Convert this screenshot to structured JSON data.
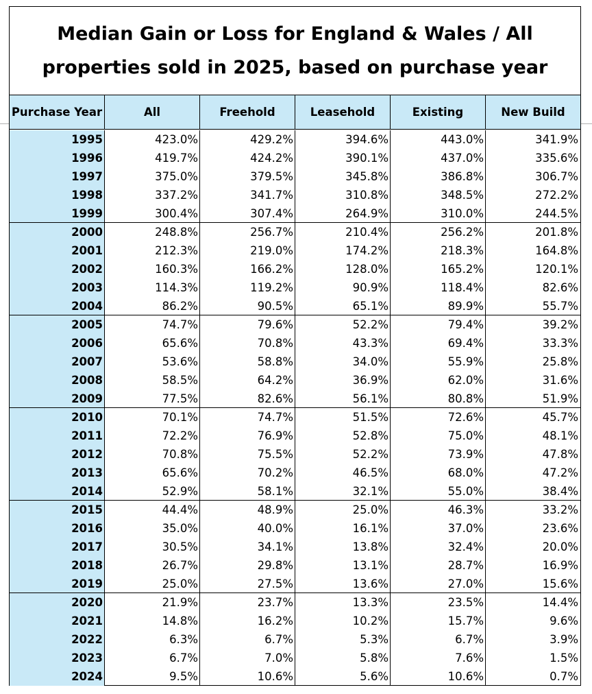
{
  "chart_data": {
    "type": "table",
    "title": "Median Gain or Loss for England & Wales / All properties sold in 2025, based on purchase year",
    "columns": [
      "Purchase Year",
      "All",
      "Freehold",
      "Leasehold",
      "Existing",
      "New Build"
    ],
    "rows": [
      [
        "1995",
        "423.0%",
        "429.2%",
        "394.6%",
        "443.0%",
        "341.9%"
      ],
      [
        "1996",
        "419.7%",
        "424.2%",
        "390.1%",
        "437.0%",
        "335.6%"
      ],
      [
        "1997",
        "375.0%",
        "379.5%",
        "345.8%",
        "386.8%",
        "306.7%"
      ],
      [
        "1998",
        "337.2%",
        "341.7%",
        "310.8%",
        "348.5%",
        "272.2%"
      ],
      [
        "1999",
        "300.4%",
        "307.4%",
        "264.9%",
        "310.0%",
        "244.5%"
      ],
      [
        "2000",
        "248.8%",
        "256.7%",
        "210.4%",
        "256.2%",
        "201.8%"
      ],
      [
        "2001",
        "212.3%",
        "219.0%",
        "174.2%",
        "218.3%",
        "164.8%"
      ],
      [
        "2002",
        "160.3%",
        "166.2%",
        "128.0%",
        "165.2%",
        "120.1%"
      ],
      [
        "2003",
        "114.3%",
        "119.2%",
        "90.9%",
        "118.4%",
        "82.6%"
      ],
      [
        "2004",
        "86.2%",
        "90.5%",
        "65.1%",
        "89.9%",
        "55.7%"
      ],
      [
        "2005",
        "74.7%",
        "79.6%",
        "52.2%",
        "79.4%",
        "39.2%"
      ],
      [
        "2006",
        "65.6%",
        "70.8%",
        "43.3%",
        "69.4%",
        "33.3%"
      ],
      [
        "2007",
        "53.6%",
        "58.8%",
        "34.0%",
        "55.9%",
        "25.8%"
      ],
      [
        "2008",
        "58.5%",
        "64.2%",
        "36.9%",
        "62.0%",
        "31.6%"
      ],
      [
        "2009",
        "77.5%",
        "82.6%",
        "56.1%",
        "80.8%",
        "51.9%"
      ],
      [
        "2010",
        "70.1%",
        "74.7%",
        "51.5%",
        "72.6%",
        "45.7%"
      ],
      [
        "2011",
        "72.2%",
        "76.9%",
        "52.8%",
        "75.0%",
        "48.1%"
      ],
      [
        "2012",
        "70.8%",
        "75.5%",
        "52.2%",
        "73.9%",
        "47.8%"
      ],
      [
        "2013",
        "65.6%",
        "70.2%",
        "46.5%",
        "68.0%",
        "47.2%"
      ],
      [
        "2014",
        "52.9%",
        "58.1%",
        "32.1%",
        "55.0%",
        "38.4%"
      ],
      [
        "2015",
        "44.4%",
        "48.9%",
        "25.0%",
        "46.3%",
        "33.2%"
      ],
      [
        "2016",
        "35.0%",
        "40.0%",
        "16.1%",
        "37.0%",
        "23.6%"
      ],
      [
        "2017",
        "30.5%",
        "34.1%",
        "13.8%",
        "32.4%",
        "20.0%"
      ],
      [
        "2018",
        "26.7%",
        "29.8%",
        "13.1%",
        "28.7%",
        "16.9%"
      ],
      [
        "2019",
        "25.0%",
        "27.5%",
        "13.6%",
        "27.0%",
        "15.6%"
      ],
      [
        "2020",
        "21.9%",
        "23.7%",
        "13.3%",
        "23.5%",
        "14.4%"
      ],
      [
        "2021",
        "14.8%",
        "16.2%",
        "10.2%",
        "15.7%",
        "9.6%"
      ],
      [
        "2022",
        "6.3%",
        "6.7%",
        "5.3%",
        "6.7%",
        "3.9%"
      ],
      [
        "2023",
        "6.7%",
        "7.0%",
        "5.8%",
        "7.6%",
        "1.5%"
      ],
      [
        "2024",
        "9.5%",
        "10.6%",
        "5.6%",
        "10.6%",
        "0.7%"
      ]
    ]
  },
  "colors": {
    "header_fill": "#c9e9f7",
    "year_column_fill": "#c9e9f7",
    "grid": "#000000"
  }
}
